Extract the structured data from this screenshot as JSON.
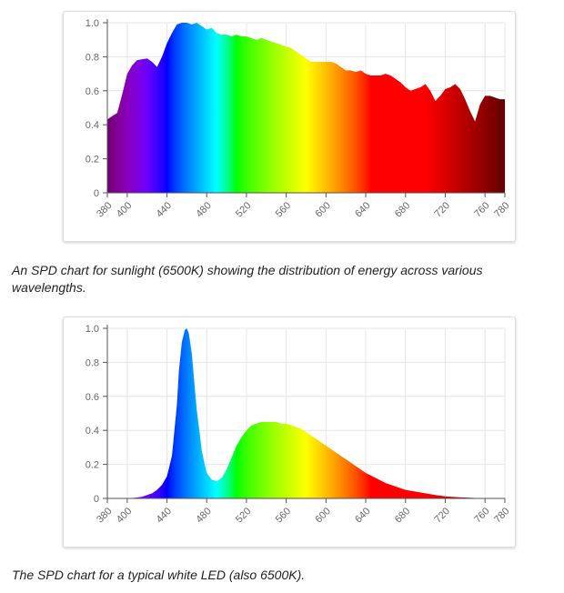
{
  "captions": {
    "sunlight": "An SPD chart for sunlight (6500K) showing the distribution of energy across various wavelengths.",
    "led": "The SPD chart for a typical white LED (also 6500K)."
  },
  "colors": {
    "grid": "#e6e6e6",
    "axis": "#666666",
    "tick_text": "#666666",
    "card_border": "#dcdcdc"
  },
  "chart_data": [
    {
      "type": "area",
      "fill": "visible-spectrum gradient",
      "title": "",
      "xlabel": "",
      "ylabel": "",
      "xlim": [
        380,
        780
      ],
      "ylim": [
        0,
        1
      ],
      "grid": true,
      "legend": "none",
      "y_ticks": [
        0,
        0.2,
        0.4,
        0.6,
        0.8,
        1.0
      ],
      "y_tick_labels": [
        "0",
        "0.2",
        "0.4",
        "0.6",
        "0.8",
        "1.0"
      ],
      "x_ticks": [
        380,
        400,
        440,
        480,
        520,
        560,
        600,
        640,
        680,
        720,
        760,
        780
      ],
      "x_tick_labels": [
        "380",
        "400",
        "440",
        "480",
        "520",
        "560",
        "600",
        "640",
        "680",
        "720",
        "760",
        "780"
      ],
      "x": [
        380,
        382,
        390,
        395,
        400,
        405,
        410,
        420,
        425,
        430,
        435,
        440,
        445,
        450,
        455,
        460,
        465,
        470,
        475,
        480,
        485,
        490,
        495,
        500,
        505,
        510,
        515,
        520,
        525,
        530,
        535,
        540,
        545,
        550,
        555,
        560,
        565,
        570,
        575,
        580,
        585,
        590,
        595,
        600,
        605,
        610,
        615,
        620,
        625,
        630,
        635,
        640,
        645,
        650,
        655,
        660,
        665,
        670,
        675,
        680,
        685,
        690,
        695,
        700,
        705,
        710,
        715,
        720,
        725,
        730,
        735,
        740,
        745,
        750,
        755,
        760,
        765,
        770,
        775,
        780
      ],
      "y": [
        0.43,
        0.44,
        0.47,
        0.58,
        0.7,
        0.75,
        0.78,
        0.79,
        0.77,
        0.74,
        0.8,
        0.88,
        0.94,
        0.99,
        1.0,
        1.0,
        0.99,
        1.0,
        0.98,
        0.96,
        0.97,
        0.94,
        0.93,
        0.93,
        0.92,
        0.93,
        0.92,
        0.92,
        0.91,
        0.9,
        0.91,
        0.9,
        0.89,
        0.88,
        0.87,
        0.86,
        0.85,
        0.83,
        0.81,
        0.79,
        0.77,
        0.77,
        0.77,
        0.77,
        0.77,
        0.76,
        0.74,
        0.72,
        0.72,
        0.71,
        0.72,
        0.7,
        0.69,
        0.69,
        0.69,
        0.7,
        0.69,
        0.67,
        0.65,
        0.62,
        0.6,
        0.61,
        0.62,
        0.64,
        0.6,
        0.54,
        0.57,
        0.61,
        0.62,
        0.64,
        0.61,
        0.55,
        0.48,
        0.42,
        0.52,
        0.57,
        0.57,
        0.56,
        0.55,
        0.55
      ]
    },
    {
      "type": "area",
      "fill": "visible-spectrum gradient",
      "title": "",
      "xlabel": "",
      "ylabel": "",
      "xlim": [
        380,
        780
      ],
      "ylim": [
        0,
        1
      ],
      "grid": true,
      "legend": "none",
      "y_ticks": [
        0,
        0.2,
        0.4,
        0.6,
        0.8,
        1.0
      ],
      "y_tick_labels": [
        "0",
        "0.2",
        "0.4",
        "0.6",
        "0.8",
        "1.0"
      ],
      "x_ticks": [
        380,
        400,
        440,
        480,
        520,
        560,
        600,
        640,
        680,
        720,
        760,
        780
      ],
      "x_tick_labels": [
        "380",
        "400",
        "440",
        "480",
        "520",
        "560",
        "600",
        "640",
        "680",
        "720",
        "760",
        "780"
      ],
      "x": [
        380,
        390,
        400,
        410,
        415,
        420,
        425,
        430,
        435,
        440,
        445,
        450,
        452,
        455,
        458,
        460,
        462,
        465,
        468,
        470,
        473,
        475,
        478,
        480,
        485,
        490,
        495,
        500,
        505,
        510,
        515,
        520,
        525,
        530,
        535,
        540,
        545,
        550,
        555,
        560,
        565,
        570,
        575,
        580,
        590,
        600,
        610,
        620,
        630,
        640,
        650,
        660,
        670,
        680,
        690,
        700,
        710,
        720,
        730,
        740,
        750,
        760,
        770,
        780
      ],
      "y": [
        0,
        0,
        0,
        0.005,
        0.01,
        0.02,
        0.03,
        0.05,
        0.08,
        0.13,
        0.25,
        0.55,
        0.75,
        0.92,
        0.99,
        1.0,
        0.97,
        0.85,
        0.65,
        0.52,
        0.38,
        0.28,
        0.2,
        0.15,
        0.11,
        0.1,
        0.12,
        0.17,
        0.24,
        0.31,
        0.36,
        0.4,
        0.43,
        0.44,
        0.45,
        0.45,
        0.45,
        0.45,
        0.44,
        0.44,
        0.43,
        0.42,
        0.41,
        0.39,
        0.35,
        0.31,
        0.27,
        0.23,
        0.19,
        0.15,
        0.12,
        0.09,
        0.07,
        0.05,
        0.04,
        0.03,
        0.02,
        0.012,
        0.008,
        0.005,
        0.003,
        0.002,
        0.001,
        0
      ]
    }
  ]
}
